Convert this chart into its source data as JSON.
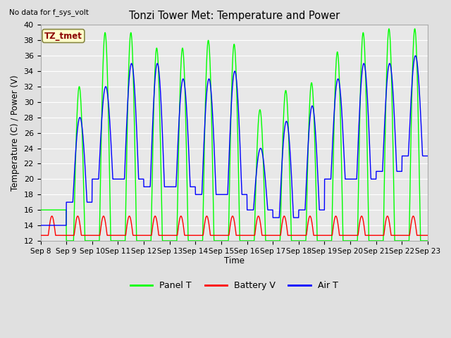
{
  "title": "Tonzi Tower Met: Temperature and Power",
  "no_data_label": "No data for f_sys_volt",
  "ylabel": "Temperature (C) / Power (V)",
  "xlabel": "Time",
  "ylim": [
    12,
    40
  ],
  "background_color": "#e0e0e0",
  "plot_bg_color": "#e8e8e8",
  "grid_color": "#ffffff",
  "panel_t_color": "#00ff00",
  "battery_v_color": "#ff0000",
  "air_t_color": "#0000ff",
  "line_width": 1.0,
  "legend_label_panel": "Panel T",
  "legend_label_battery": "Battery V",
  "legend_label_air": "Air T",
  "tz_tmet_label": "TZ_tmet",
  "x_tick_labels": [
    "Sep 8",
    "Sep 9",
    "Sep 10",
    "Sep 11",
    "Sep 12",
    "Sep 13",
    "Sep 14",
    "Sep 15",
    "Sep 16",
    "Sep 17",
    "Sep 18",
    "Sep 19",
    "Sep 20",
    "Sep 21",
    "Sep 22",
    "Sep 23"
  ],
  "num_days": 15,
  "panel_peaks": [
    16,
    32,
    39,
    39,
    37,
    37,
    38,
    37.5,
    29,
    31.5,
    32.5,
    36.5,
    39,
    39.5,
    39.5
  ],
  "air_peaks": [
    14,
    28,
    32,
    35,
    35,
    33,
    33,
    34,
    24,
    27.5,
    29.5,
    33,
    35,
    35,
    36
  ],
  "air_mins": [
    14,
    17,
    20,
    20,
    19,
    19,
    18,
    18,
    16,
    15,
    16,
    20,
    20,
    21,
    23
  ],
  "panel_mins": [
    16,
    12,
    12,
    12,
    12,
    12,
    12,
    12,
    12,
    12,
    12,
    12,
    12,
    12,
    12
  ],
  "batt_base": 12.7,
  "batt_peak": 15.2,
  "batt_peak2": 15.5
}
